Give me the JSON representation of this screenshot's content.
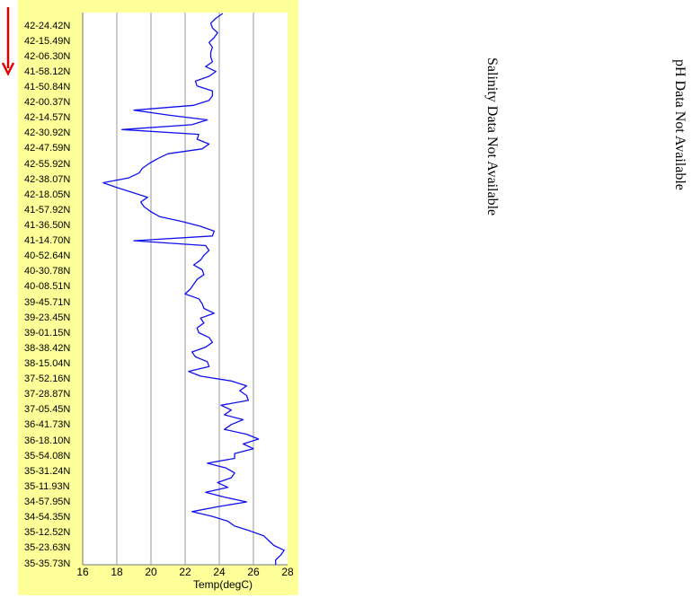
{
  "chart_data": {
    "type": "line",
    "xlabel": "Temp(degC)",
    "xlim": [
      16,
      28
    ],
    "x_ticks": [
      "16",
      "18",
      "20",
      "22",
      "24",
      "26",
      "28"
    ],
    "y_tick_labels": [
      "42-24.42N",
      "42-15.49N",
      "42-06.30N",
      "41-58.12N",
      "41-50.84N",
      "42-00.37N",
      "42-14.57N",
      "42-30.92N",
      "42-47.59N",
      "42-55.92N",
      "42-38.07N",
      "42-18.05N",
      "41-57.92N",
      "41-36.50N",
      "41-14.70N",
      "40-52.64N",
      "40-30.78N",
      "40-08.51N",
      "39-45.71N",
      "39-23.45N",
      "39-01.15N",
      "38-38.42N",
      "38-15.04N",
      "37-52.16N",
      "37-28.87N",
      "37-05.45N",
      "36-41.73N",
      "36-18.10N",
      "35-54.08N",
      "35-31.24N",
      "35-11.93N",
      "34-57.95N",
      "34-54.35N",
      "35-12.52N",
      "35-23.63N",
      "35-35.73N"
    ],
    "grid": "vertical",
    "series": [
      {
        "color": "#1010ee",
        "values": [
          24.2,
          23.8,
          23.5,
          23.6,
          23.9,
          23.7,
          23.4,
          23.6,
          23.5,
          23.5,
          23.6,
          23.2,
          23.8,
          23.4,
          22.6,
          22.7,
          23.6,
          23.6,
          23.4,
          22.5,
          19.0,
          21.0,
          23.3,
          22.4,
          18.3,
          22.8,
          22.7,
          23.4,
          23.0,
          21.0,
          20.4,
          19.9,
          19.5,
          19.3,
          18.7,
          17.2,
          18.0,
          18.9,
          19.8,
          19.4,
          19.6,
          20.0,
          20.5,
          21.8,
          22.9,
          23.7,
          23.6,
          19.0,
          23.2,
          23.4,
          23.1,
          22.9,
          22.5,
          23.0,
          23.1,
          22.7,
          22.5,
          22.3,
          22.0,
          22.8,
          23.0,
          23.1,
          23.7,
          22.9,
          23.1,
          22.7,
          22.8,
          23.4,
          23.6,
          23.2,
          22.4,
          22.6,
          23.3,
          23.4,
          22.2,
          22.9,
          24.7,
          25.6,
          25.2,
          25.6,
          25.7,
          24.1,
          24.7,
          24.3,
          25.4,
          24.7,
          24.3,
          25.6,
          26.3,
          25.4,
          26.0,
          24.9,
          24.9,
          23.3,
          24.4,
          24.9,
          24.7,
          23.9,
          24.5,
          23.2,
          24.3,
          25.6,
          23.9,
          22.4,
          23.6,
          24.5,
          24.9,
          25.8,
          26.6,
          26.9,
          27.2,
          27.8,
          27.6,
          27.3,
          27.3
        ]
      }
    ]
  },
  "labels": {
    "salinity_note": "Salinity Data Not Available",
    "ph_note": "pH Data Not Available"
  },
  "colors": {
    "panel_bg": "#ffff99",
    "arrow": "#dd0000",
    "series": "#1010ee",
    "grid": "#999999"
  },
  "icons": {
    "direction_arrow": "down-arrow-icon"
  }
}
